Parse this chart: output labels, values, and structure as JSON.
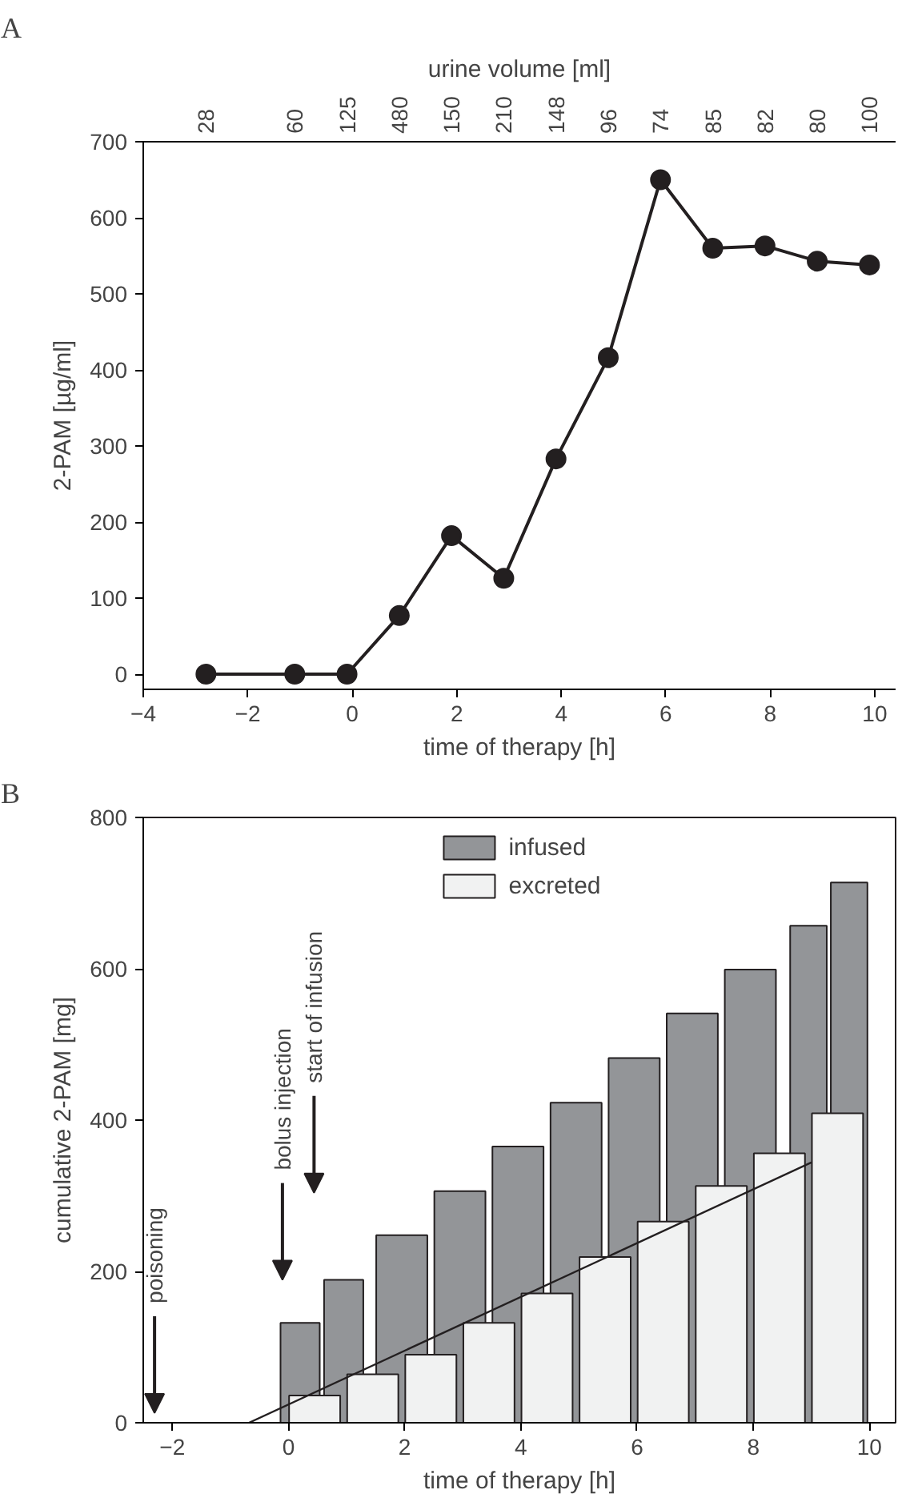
{
  "chart_data": [
    {
      "type": "line",
      "title": "A",
      "xlabel": "time of therapy [h]",
      "ylabel": "2-PAM [µg/ml]",
      "x2label": "urine volume [ml]",
      "color": "#231f20",
      "marker": "circle",
      "line_style": "solid",
      "grid": false,
      "x": [
        -2.8,
        -1.1,
        -0.1,
        0.9,
        1.9,
        2.9,
        3.9,
        4.9,
        5.9,
        6.9,
        7.9,
        8.9,
        9.9
      ],
      "values": [
        0,
        0,
        0,
        77,
        182,
        126,
        283,
        416,
        650,
        560,
        563,
        543,
        538
      ],
      "xlim": [
        -4,
        10.4
      ],
      "xticks": [
        -4,
        -2,
        0,
        2,
        4,
        6,
        8,
        10
      ],
      "ylim": [
        -20,
        700
      ],
      "yticks": [
        0,
        100,
        200,
        300,
        400,
        500,
        600,
        700
      ],
      "annotations": [
        "28",
        "60",
        "125",
        "480",
        "150",
        "210",
        "148",
        "96",
        "74",
        "85",
        "82",
        "80",
        "100"
      ]
    },
    {
      "type": "bar",
      "title": "B",
      "xlabel": "time of therapy [h]",
      "ylabel": "cumulative 2-PAM [mg]",
      "grid": false,
      "legend": "top",
      "xlim": [
        -2.5,
        10.45
      ],
      "xticks": [
        -2,
        0,
        2,
        4,
        6,
        8,
        10
      ],
      "ylim": [
        0,
        800
      ],
      "yticks": [
        0,
        200,
        400,
        600,
        800
      ],
      "series": [
        {
          "name": "infused",
          "color": "#939598",
          "x": [
            0.2,
            0.95,
            1.95,
            2.95,
            3.95,
            4.95,
            5.95,
            6.95,
            7.95,
            8.95,
            9.65
          ],
          "values": [
            132,
            189,
            248,
            306,
            365,
            423,
            482,
            541,
            599,
            657,
            714
          ]
        },
        {
          "name": "excreted",
          "color": "#f1f2f2",
          "x": [
            0.45,
            1.45,
            2.45,
            3.45,
            4.45,
            5.45,
            6.45,
            7.45,
            8.45,
            9.45
          ],
          "values": [
            36,
            64,
            90,
            132,
            171,
            219,
            266,
            313,
            356,
            409
          ]
        },
        {
          "type": "line",
          "color": "#231f20",
          "x": [
            -0.68,
            9.0
          ],
          "values": [
            0,
            344
          ]
        }
      ],
      "annotations": [
        "poisoning",
        "bolus injection",
        "start of infusion"
      ]
    }
  ]
}
